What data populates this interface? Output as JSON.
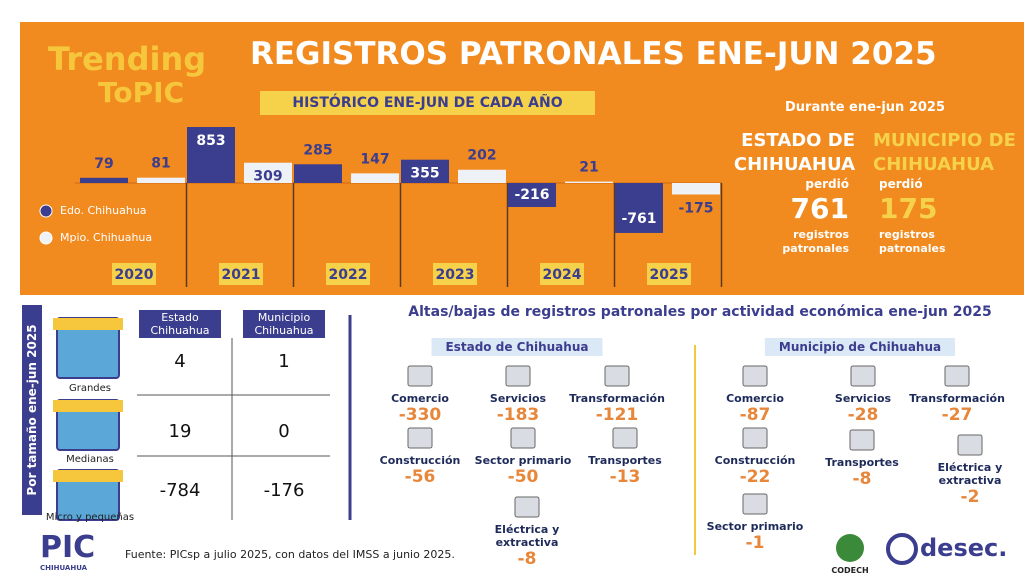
{
  "header": {
    "logo_line1": "Trending",
    "logo_line2": "ToPIC",
    "title": "REGISTROS PATRONALES ENE-JUN 2025"
  },
  "chart_data": {
    "type": "bar",
    "subtitle": "HISTÓRICO ENE-JUN DE CADA AÑO",
    "categories": [
      "2020",
      "2021",
      "2022",
      "2023",
      "2024",
      "2025"
    ],
    "series": [
      {
        "name": "Edo. Chihuahua",
        "color": "#3b3d8e",
        "values": [
          79,
          853,
          285,
          355,
          -216,
          -761
        ]
      },
      {
        "name": "Mpio. Chihuahua",
        "color": "#eef2f7",
        "values": [
          81,
          309,
          147,
          202,
          21,
          -175
        ]
      }
    ]
  },
  "summary": {
    "period": "Durante ene-jun 2025",
    "estado": {
      "name_line1": "ESTADO DE",
      "name_line2": "CHIHUAHUA",
      "verb": "perdió",
      "value": 761,
      "unit_line1": "registros",
      "unit_line2": "patronales"
    },
    "municipio": {
      "name_line1": "MUNICIPIO DE",
      "name_line2": "CHIHUAHUA",
      "verb": "perdió",
      "value": 175,
      "unit_line1": "registros",
      "unit_line2": "patronales"
    }
  },
  "size_table": {
    "side_label": "Por tamaño ene-jun 2025",
    "columns": [
      "Estado Chihuahua",
      "Municipio Chihuahua"
    ],
    "rows": [
      {
        "label": "Grandes",
        "values": [
          4,
          1
        ]
      },
      {
        "label": "Medianas",
        "values": [
          19,
          0
        ]
      },
      {
        "label": "Micro y pequeñas",
        "values": [
          -784,
          -176
        ]
      }
    ]
  },
  "activities": {
    "title": "Altas/bajas de registros patronales por actividad económica ene-jun 2025",
    "groups": [
      {
        "name": "Estado de Chihuahua",
        "items": [
          {
            "label": "Comercio",
            "value": -330
          },
          {
            "label": "Servicios",
            "value": -183
          },
          {
            "label": "Transformación",
            "value": -121
          },
          {
            "label": "Construcción",
            "value": -56
          },
          {
            "label": "Sector primario",
            "value": -50
          },
          {
            "label": "Transportes",
            "value": -13
          },
          {
            "label": "Eléctrica y extractiva",
            "value": -8
          }
        ]
      },
      {
        "name": "Municipio de Chihuahua",
        "items": [
          {
            "label": "Comercio",
            "value": -87
          },
          {
            "label": "Servicios",
            "value": -28
          },
          {
            "label": "Transformación",
            "value": -27
          },
          {
            "label": "Construcción",
            "value": -22
          },
          {
            "label": "Transportes",
            "value": -8
          },
          {
            "label": "Eléctrica y extractiva",
            "value": -2
          },
          {
            "label": "Sector primario",
            "value": -1
          }
        ]
      }
    ]
  },
  "footer": {
    "source": "Fuente:  PICsp a julio 2025, con datos del IMSS a junio 2025.",
    "logo_left": "PIC",
    "logo_left_sub": "CHIHUAHUA",
    "codech": "CODECH",
    "desec": "desec."
  }
}
